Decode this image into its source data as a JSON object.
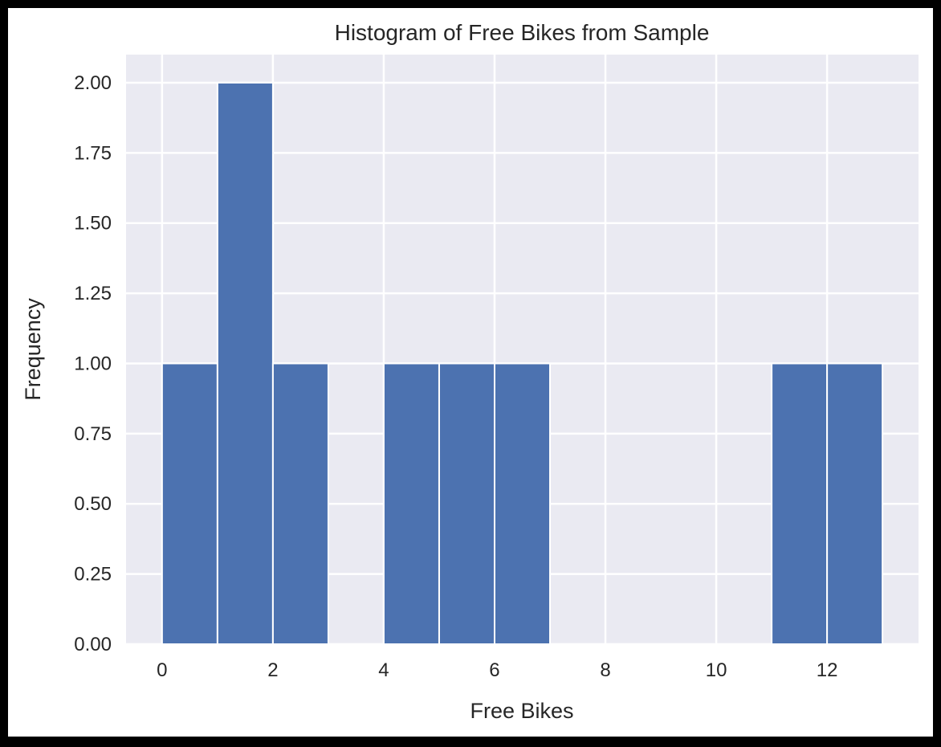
{
  "chart_data": {
    "type": "bar",
    "title": "Histogram of Free Bikes from Sample",
    "xlabel": "Free Bikes",
    "ylabel": "Frequency",
    "xlim": [
      -0.65,
      13.65
    ],
    "ylim": [
      0,
      2.1
    ],
    "xticks": [
      0,
      2,
      4,
      6,
      8,
      10,
      12
    ],
    "xtick_labels": [
      "0",
      "2",
      "4",
      "6",
      "8",
      "10",
      "12"
    ],
    "yticks": [
      0,
      0.25,
      0.5,
      0.75,
      1.0,
      1.25,
      1.5,
      1.75,
      2.0
    ],
    "ytick_labels": [
      "0.00",
      "0.25",
      "0.50",
      "0.75",
      "1.00",
      "1.25",
      "1.50",
      "1.75",
      "2.00"
    ],
    "bin_edges": [
      0,
      1,
      2,
      3,
      4,
      5,
      6,
      7,
      8,
      9,
      10,
      11,
      12,
      13
    ],
    "values": [
      1,
      2,
      1,
      0,
      1,
      1,
      1,
      0,
      0,
      0,
      0,
      1,
      1
    ],
    "grid": true,
    "colors": {
      "bar": "#4c72b0",
      "axes_background": "#eaeaf2",
      "grid": "#ffffff",
      "text": "#262626"
    }
  }
}
